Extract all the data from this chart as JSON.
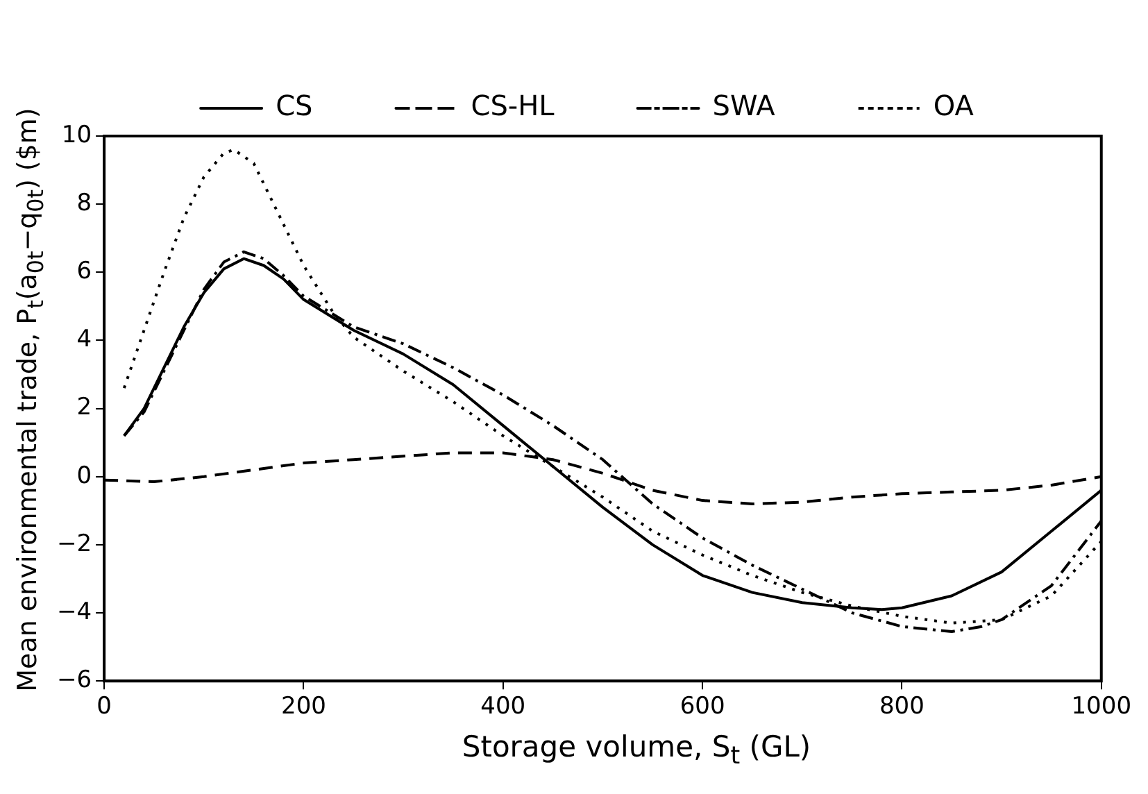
{
  "chart_data": {
    "type": "line",
    "xlabel": "Storage volume, S$_{t}$ (GL)",
    "ylabel": "Mean environmental trade, P$_{t}$(a$_{0t}$−q$_{0t}$) ($m)",
    "xlim": [
      0,
      1000
    ],
    "xticks": [
      0,
      200,
      400,
      600,
      800,
      1000
    ],
    "ylim": [
      -6,
      10
    ],
    "yticks": [
      {
        "value": -6,
        "label": "−6"
      },
      {
        "value": -4,
        "label": "−4"
      },
      {
        "value": -2,
        "label": "−2"
      },
      0,
      2,
      4,
      6,
      8,
      10
    ],
    "grid": false,
    "legend": "top",
    "marker": "none",
    "series": [
      {
        "name": "CS",
        "color": "#000000",
        "line_style": "solid",
        "x": [
          20,
          40,
          60,
          80,
          100,
          120,
          140,
          160,
          180,
          200,
          250,
          300,
          350,
          400,
          450,
          500,
          550,
          600,
          650,
          700,
          750,
          780,
          800,
          850,
          900,
          950,
          1000
        ],
        "values": [
          1.2,
          2.0,
          3.2,
          4.4,
          5.4,
          6.1,
          6.4,
          6.2,
          5.8,
          5.2,
          4.3,
          3.6,
          2.7,
          1.5,
          0.3,
          -0.9,
          -2.0,
          -2.9,
          -3.4,
          -3.7,
          -3.85,
          -3.9,
          -3.85,
          -3.5,
          -2.8,
          -1.6,
          -0.4
        ]
      },
      {
        "name": "CS-HL",
        "color": "#000000",
        "line_style": "dashed",
        "x": [
          0,
          50,
          100,
          150,
          200,
          250,
          300,
          350,
          400,
          450,
          500,
          550,
          600,
          650,
          700,
          750,
          800,
          850,
          900,
          950,
          1000
        ],
        "values": [
          -0.1,
          -0.15,
          0,
          0.2,
          0.4,
          0.5,
          0.6,
          0.7,
          0.7,
          0.5,
          0.1,
          -0.4,
          -0.7,
          -0.8,
          -0.75,
          -0.6,
          -0.5,
          -0.45,
          -0.4,
          -0.25,
          0
        ]
      },
      {
        "name": "SWA",
        "color": "#000000",
        "line_style": "dashdot",
        "x": [
          20,
          40,
          60,
          80,
          100,
          120,
          140,
          160,
          180,
          200,
          250,
          300,
          350,
          400,
          450,
          500,
          550,
          600,
          650,
          700,
          750,
          800,
          850,
          880,
          900,
          950,
          1000
        ],
        "values": [
          1.2,
          1.9,
          3.1,
          4.3,
          5.5,
          6.3,
          6.6,
          6.4,
          5.9,
          5.3,
          4.4,
          3.9,
          3.2,
          2.4,
          1.5,
          0.5,
          -0.8,
          -1.8,
          -2.6,
          -3.3,
          -4.0,
          -4.4,
          -4.55,
          -4.4,
          -4.2,
          -3.2,
          -1.3
        ]
      },
      {
        "name": "OA",
        "color": "#000000",
        "line_style": "dotted",
        "x": [
          20,
          40,
          60,
          80,
          100,
          120,
          130,
          150,
          170,
          200,
          230,
          250,
          300,
          350,
          400,
          450,
          500,
          550,
          600,
          650,
          700,
          750,
          800,
          850,
          900,
          950,
          1000
        ],
        "values": [
          2.6,
          4.3,
          6.0,
          7.6,
          8.8,
          9.5,
          9.6,
          9.2,
          8.0,
          6.2,
          4.8,
          4.1,
          3.1,
          2.2,
          1.2,
          0.3,
          -0.6,
          -1.6,
          -2.3,
          -2.9,
          -3.4,
          -3.8,
          -4.1,
          -4.3,
          -4.2,
          -3.5,
          -1.9
        ]
      }
    ]
  }
}
